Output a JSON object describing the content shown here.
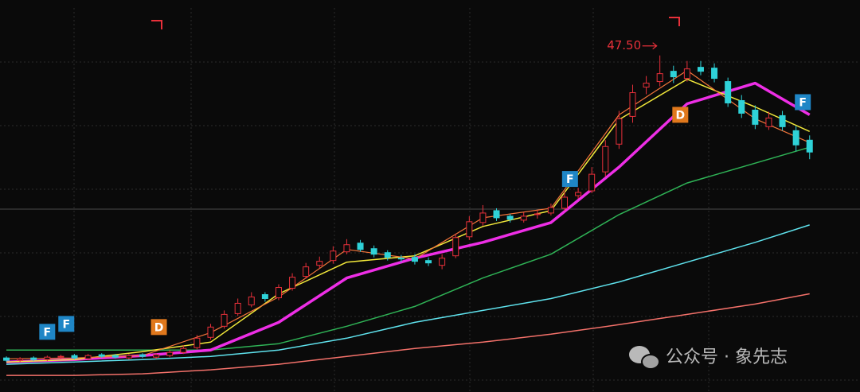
{
  "chart_data": {
    "type": "candlestick",
    "xlim": [
      -0.47,
      62.7
    ],
    "ylim": [
      5,
      54.5
    ],
    "up_color": "#e8303a",
    "down_color": "#2fd2d8",
    "open": [
      9.3,
      9.0,
      9.3,
      9.1,
      9.4,
      9.6,
      9.2,
      9.7,
      9.6,
      9.3,
      9.7,
      9.4,
      9.6,
      10.0,
      10.6,
      11.9,
      13.3,
      14.9,
      16.0,
      17.3,
      16.9,
      18.1,
      19.6,
      21.0,
      21.6,
      22.7,
      23.8,
      23.1,
      22.6,
      21.9,
      22.0,
      21.6,
      21.0,
      22.2,
      24.6,
      26.4,
      27.9,
      27.2,
      26.7,
      27.4,
      27.6,
      28.2,
      29.8,
      30.4,
      32.8,
      36.3,
      39.8,
      43.5,
      44.2,
      45.5,
      44.6,
      46.0,
      45.9,
      44.2,
      41.8,
      40.6,
      38.5,
      39.9,
      38.0,
      36.8
    ],
    "high": [
      9.5,
      9.4,
      9.5,
      9.6,
      9.7,
      9.8,
      9.8,
      9.9,
      9.8,
      9.8,
      9.9,
      9.9,
      10.3,
      10.9,
      12.2,
      13.6,
      15.3,
      16.8,
      17.6,
      17.6,
      18.6,
      20.0,
      21.3,
      22.1,
      23.4,
      24.3,
      24.2,
      23.5,
      22.9,
      22.3,
      22.4,
      22.0,
      22.4,
      25.0,
      27.2,
      28.6,
      28.2,
      27.5,
      27.7,
      28.0,
      28.8,
      30.3,
      30.8,
      33.4,
      36.8,
      40.5,
      43.8,
      44.9,
      47.5,
      46.2,
      46.8,
      46.8,
      46.5,
      44.7,
      42.5,
      41.2,
      40.4,
      40.5,
      38.6,
      37.4
    ],
    "low": [
      8.8,
      8.8,
      8.9,
      8.9,
      9.2,
      9.1,
      9.0,
      9.3,
      9.2,
      9.1,
      9.3,
      9.2,
      9.4,
      9.8,
      10.4,
      11.6,
      13.0,
      14.6,
      15.7,
      16.4,
      16.6,
      17.8,
      19.3,
      20.6,
      21.2,
      22.4,
      22.7,
      22.0,
      21.6,
      21.4,
      21.1,
      20.9,
      20.5,
      21.9,
      24.2,
      26.0,
      26.6,
      26.4,
      26.4,
      26.9,
      27.3,
      27.9,
      29.4,
      30.1,
      32.2,
      35.7,
      39.0,
      42.6,
      43.6,
      44.0,
      44.2,
      45.0,
      44.1,
      41.0,
      39.6,
      38.2,
      38.1,
      38.0,
      35.4,
      34.4
    ],
    "close": [
      9.0,
      9.2,
      9.1,
      9.4,
      9.5,
      9.3,
      9.6,
      9.5,
      9.4,
      9.6,
      9.5,
      9.7,
      10.0,
      10.5,
      11.8,
      13.2,
      14.8,
      16.2,
      17.0,
      16.8,
      18.2,
      19.5,
      20.8,
      21.5,
      22.8,
      23.6,
      23.0,
      22.4,
      22.0,
      21.8,
      21.5,
      21.3,
      21.9,
      24.5,
      26.5,
      27.6,
      27.0,
      26.8,
      27.2,
      27.5,
      28.3,
      29.6,
      30.2,
      32.5,
      36.0,
      39.5,
      42.8,
      44.0,
      45.2,
      44.8,
      45.8,
      45.5,
      44.6,
      41.5,
      40.2,
      38.8,
      39.6,
      38.5,
      36.2,
      35.3
    ],
    "series": [
      {
        "color": "#f4716a",
        "width": 1.5,
        "x": [
          0,
          5,
          10,
          15,
          20,
          25,
          30,
          35,
          40,
          45,
          50,
          55,
          59
        ],
        "values": [
          7.1,
          7.1,
          7.3,
          7.8,
          8.5,
          9.5,
          10.5,
          11.3,
          12.3,
          13.5,
          14.8,
          16.1,
          17.4
        ]
      },
      {
        "color": "#5fe3ee",
        "width": 1.5,
        "x": [
          0,
          5,
          10,
          15,
          20,
          25,
          30,
          35,
          40,
          45,
          50,
          55,
          59
        ],
        "values": [
          8.5,
          8.8,
          9.1,
          9.5,
          10.3,
          11.8,
          13.8,
          15.3,
          16.8,
          18.9,
          21.4,
          23.9,
          26.1
        ]
      },
      {
        "color": "#2fb356",
        "width": 1.5,
        "x": [
          0,
          5,
          10,
          15,
          20,
          25,
          30,
          35,
          40,
          45,
          50,
          55,
          59
        ],
        "values": [
          10.3,
          10.3,
          10.3,
          10.3,
          11.1,
          13.3,
          15.8,
          19.4,
          22.4,
          27.4,
          31.4,
          33.9,
          35.9
        ]
      },
      {
        "color": "#ee2ee6",
        "width": 3.5,
        "x": [
          0,
          5,
          10,
          15,
          20,
          25,
          30,
          35,
          40,
          45,
          50,
          55,
          59
        ],
        "values": [
          8.8,
          9.1,
          9.6,
          10.3,
          13.8,
          19.4,
          21.9,
          23.9,
          26.4,
          33.4,
          41.4,
          44.0,
          40.0
        ]
      },
      {
        "color": "#f2e83a",
        "width": 1.5,
        "x": [
          0,
          5,
          10,
          15,
          20,
          25,
          30,
          35,
          40,
          45,
          50,
          55,
          59
        ],
        "values": [
          8.8,
          9.1,
          10.1,
          11.3,
          17.4,
          21.4,
          22.2,
          25.9,
          27.9,
          39.4,
          44.5,
          41.0,
          37.9
        ]
      },
      {
        "color": "#f2743a",
        "width": 1.2,
        "x": [
          0,
          5,
          10,
          15,
          20,
          25,
          30,
          35,
          40,
          45,
          50,
          55,
          59
        ],
        "values": [
          9.2,
          9.3,
          9.6,
          12.5,
          17.0,
          23.0,
          21.8,
          27.0,
          28.2,
          40.0,
          45.6,
          39.5,
          36.5
        ]
      }
    ],
    "peak": {
      "value": 47.5,
      "label": "47.50",
      "x": 48
    },
    "annotations": [
      {
        "text": "F",
        "x": 3,
        "y": 12.6,
        "color": "#1f86c6"
      },
      {
        "text": "F",
        "x": 4.4,
        "y": 13.6,
        "color": "#1f86c6"
      },
      {
        "text": "D",
        "x": 11.2,
        "y": 13.2,
        "color": "#e0781c"
      },
      {
        "text": "F",
        "x": 41.4,
        "y": 31.9,
        "color": "#1f86c6"
      },
      {
        "text": "D",
        "x": 49.5,
        "y": 40.0,
        "color": "#e0781c"
      },
      {
        "text": "F",
        "x": 58.5,
        "y": 41.6,
        "color": "#1f86c6"
      }
    ]
  },
  "watermark": "公众号 · 象先志"
}
